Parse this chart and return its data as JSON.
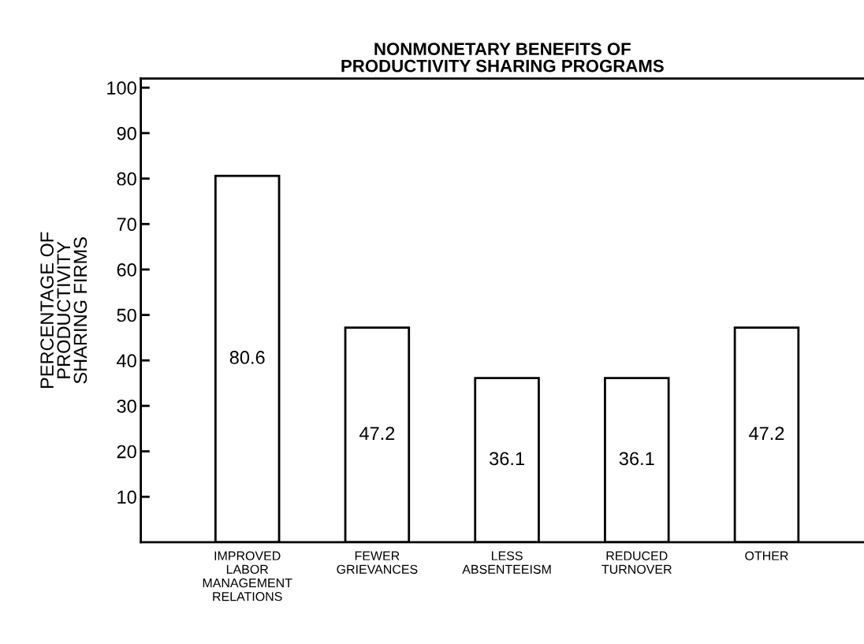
{
  "chart_data": {
    "type": "bar",
    "title": "NONMONETARY BENEFITS OF\nPRODUCTIVITY SHARING PROGRAMS",
    "ylabel": "PERCENTAGE OF\nPRODUCTIVITY\nSHARING FIRMS",
    "categories": [
      "IMPROVED\nLABOR\nMANAGEMENT\nRELATIONS",
      "FEWER\nGRIEVANCES",
      "LESS\nABSENTEEISM",
      "REDUCED\nTURNOVER",
      "OTHER"
    ],
    "values": [
      80.6,
      47.2,
      36.1,
      36.1,
      47.2
    ],
    "color": "#ffffff",
    "ylim": [
      0,
      102
    ],
    "yticks": [
      10,
      20,
      30,
      40,
      50,
      60,
      70,
      80,
      90,
      100
    ],
    "data_labels": true,
    "grid": false
  }
}
